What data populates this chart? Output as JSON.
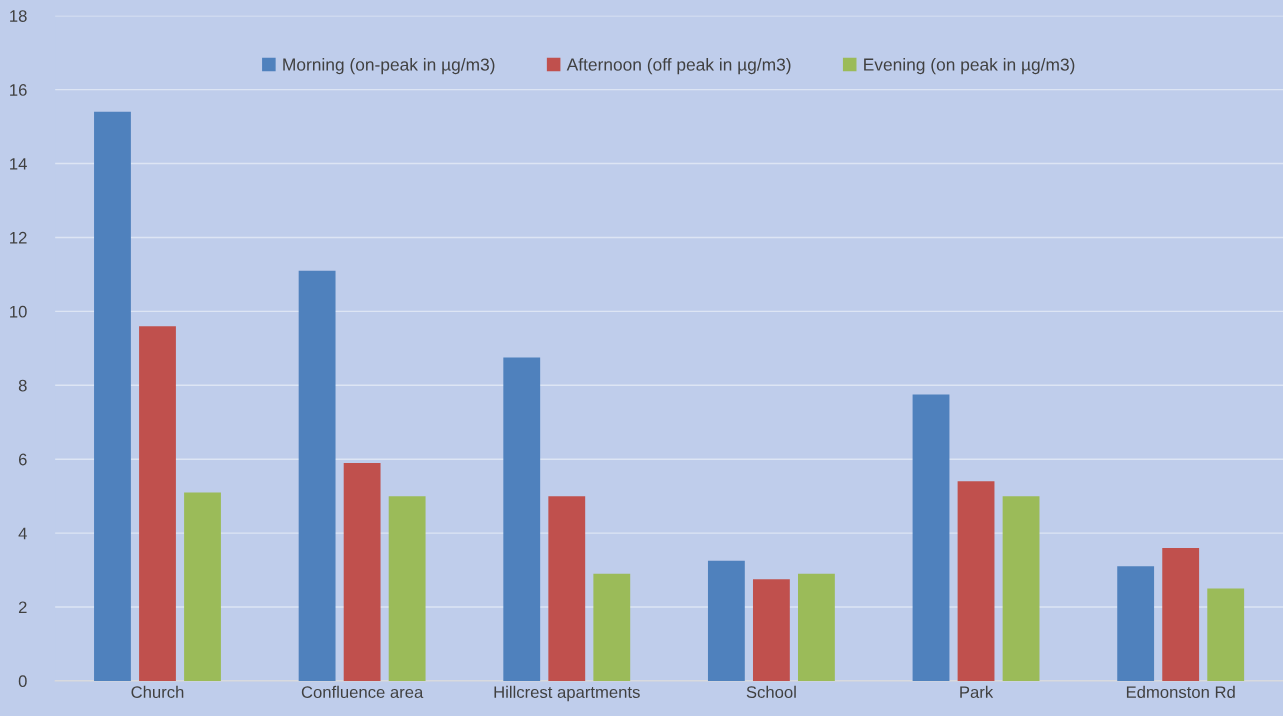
{
  "chart_data": {
    "type": "bar",
    "categories": [
      "Church",
      "Confluence area",
      "Hillcrest apartments",
      "School",
      "Park",
      "Edmonston Rd"
    ],
    "series": [
      {
        "name": "Morning (on-peak in µg/m3)",
        "color": "#4f81bd",
        "values": [
          15.4,
          11.1,
          8.75,
          3.25,
          7.75,
          3.1
        ]
      },
      {
        "name": "Afternoon (off peak in µg/m3)",
        "color": "#c0504d",
        "values": [
          9.6,
          5.9,
          5.0,
          2.75,
          5.4,
          3.6
        ]
      },
      {
        "name": "Evening (on peak in µg/m3)",
        "color": "#9bbb59",
        "values": [
          5.1,
          5.0,
          2.9,
          2.9,
          5.0,
          2.5
        ]
      }
    ],
    "ylim": [
      0,
      18
    ],
    "yticks": [
      0,
      2,
      4,
      6,
      8,
      10,
      12,
      14,
      16,
      18
    ],
    "grid": "y",
    "legend": "top"
  }
}
